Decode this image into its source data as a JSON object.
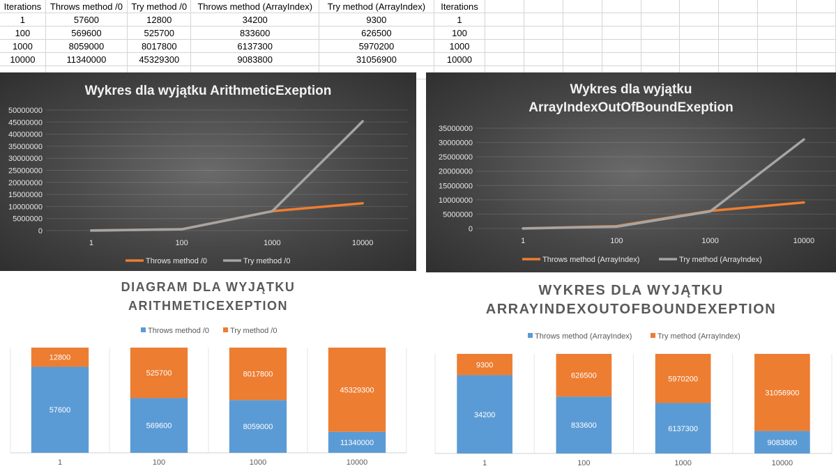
{
  "sheet": {
    "headers": [
      "Iterations",
      "Throws method /0",
      "Try method /0",
      "Throws method (ArrayIndex)",
      "Try method (ArrayIndex)",
      "Iterations"
    ],
    "rows": [
      [
        "1",
        "57600",
        "12800",
        "34200",
        "9300",
        "1"
      ],
      [
        "100",
        "569600",
        "525700",
        "833600",
        "626500",
        "100"
      ],
      [
        "1000",
        "8059000",
        "8017800",
        "6137300",
        "5970200",
        "1000"
      ],
      [
        "10000",
        "11340000",
        "45329300",
        "9083800",
        "31056900",
        "10000"
      ]
    ]
  },
  "colors": {
    "blue": "#5b9bd5",
    "orange": "#ed7d31",
    "gray": "#a5a5a5"
  },
  "chart_data": [
    {
      "id": "line1",
      "type": "line",
      "title_lines": [
        "Wykres dla wyjątku ArithmeticExeption"
      ],
      "categories": [
        "1",
        "100",
        "1000",
        "10000"
      ],
      "series": [
        {
          "name": "Throws method /0",
          "values": [
            57600,
            569600,
            8059000,
            11340000
          ],
          "color": "#ed7d31"
        },
        {
          "name": "Try method /0",
          "values": [
            12800,
            525700,
            8017800,
            45329300
          ],
          "color": "#a5a5a5"
        }
      ],
      "ylim": [
        0,
        50000000
      ],
      "yticks": [
        0,
        5000000,
        10000000,
        15000000,
        20000000,
        25000000,
        30000000,
        35000000,
        40000000,
        45000000,
        50000000
      ],
      "legend": "bottom",
      "grid": true
    },
    {
      "id": "line2",
      "type": "line",
      "title_lines": [
        "Wykres dla wyjątku",
        "ArrayIndexOutOfBoundExeption"
      ],
      "categories": [
        "1",
        "100",
        "1000",
        "10000"
      ],
      "series": [
        {
          "name": "Throws method (ArrayIndex)",
          "values": [
            34200,
            833600,
            6137300,
            9083800
          ],
          "color": "#ed7d31"
        },
        {
          "name": "Try method (ArrayIndex)",
          "values": [
            9300,
            626500,
            5970200,
            31056900
          ],
          "color": "#a5a5a5"
        }
      ],
      "ylim": [
        0,
        35000000
      ],
      "yticks": [
        0,
        5000000,
        10000000,
        15000000,
        20000000,
        25000000,
        30000000,
        35000000
      ],
      "legend": "bottom",
      "grid": true
    },
    {
      "id": "bar1",
      "type": "bar",
      "stacked": "percent",
      "title_lines": [
        "DIAGRAM DLA WYJĄTKU",
        "ARITHMETICEXEPTION"
      ],
      "categories": [
        "1",
        "100",
        "1000",
        "10000"
      ],
      "series": [
        {
          "name": "Throws method /0",
          "values": [
            57600,
            569600,
            8059000,
            11340000
          ],
          "color": "#5b9bd5"
        },
        {
          "name": "Try method /0",
          "values": [
            12800,
            525700,
            8017800,
            45329300
          ],
          "color": "#ed7d31"
        }
      ],
      "legend": "top"
    },
    {
      "id": "bar2",
      "type": "bar",
      "stacked": "percent",
      "title_lines": [
        "WYKRES DLA WYJĄTKU",
        "ARRAYINDEXOUTOFBOUNDEXEPTION"
      ],
      "categories": [
        "1",
        "100",
        "1000",
        "10000"
      ],
      "series": [
        {
          "name": "Throws method (ArrayIndex)",
          "values": [
            34200,
            833600,
            6137300,
            9083800
          ],
          "color": "#5b9bd5"
        },
        {
          "name": "Try method (ArrayIndex)",
          "values": [
            9300,
            626500,
            5970200,
            31056900
          ],
          "color": "#ed7d31"
        }
      ],
      "legend": "top"
    }
  ]
}
